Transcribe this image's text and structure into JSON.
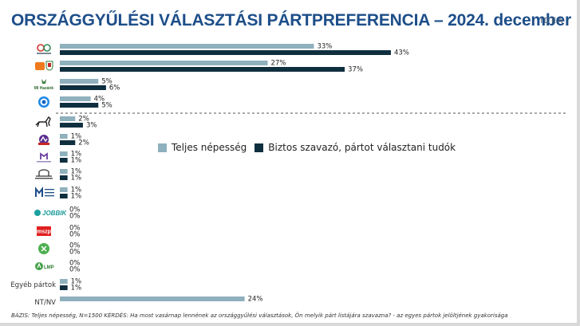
{
  "header": {
    "title": "ORSZÁGGYŰLÉSI VÁLASZTÁSI PÁRTPREFERENCIA – 2024. december",
    "brand": "IDEA"
  },
  "legend": [
    {
      "name": "Teljes népesség",
      "color": "#8fb0bd"
    },
    {
      "name": "Biztos szavazó, pártot választani tudók",
      "color": "#0f2f3f"
    }
  ],
  "footnote": "BÁZIS: Teljes népesség, N=1500  KÉRDÉS:  Ha most vasárnap lennének az országgyűlési választások, Ön melyik párt listájára szavazna? - az egyes pártok jelöltjének gyakorisága",
  "colors": {
    "teljes": "#8fb0bd",
    "biztos": "#0f2f3f",
    "divider": "#555555"
  },
  "chart_data": {
    "type": "bar",
    "orientation": "horizontal",
    "categories": [
      "TISZA PÁRT",
      "FIDESZ-KDNP",
      "MI Hazánk",
      "DK",
      "MKKP",
      "Momentum",
      "Második Reformkor",
      "Nemzeti Ellenállás Mozgalom",
      "Magyar Munkáspárt",
      "JOBBIK",
      "MSZP",
      "Párbeszéd",
      "LMP",
      "Egyéb pártok",
      "NT/NV"
    ],
    "category_text": [
      "",
      "",
      "MI Hazánk",
      "",
      "",
      "",
      "",
      "",
      "",
      "JOBBIK",
      "mszp",
      "",
      "LMP",
      "Egyéb pártok",
      "NT/NV"
    ],
    "series": [
      {
        "name": "Teljes népesség",
        "values": [
          33,
          27,
          5,
          4,
          2,
          1,
          1,
          1,
          1,
          0,
          0,
          0,
          0,
          1,
          24
        ],
        "labels": [
          "33%",
          "27%",
          "5%",
          "4%",
          "2%",
          "1%",
          "1%",
          "1%",
          "1%",
          "0%",
          "0%",
          "0%",
          "0%",
          "1%",
          "24%"
        ]
      },
      {
        "name": "Biztos szavazó, pártot választani tudók",
        "values": [
          43,
          37,
          6,
          5,
          3,
          2,
          1,
          1,
          1,
          0,
          0,
          0,
          0,
          1,
          null
        ],
        "labels": [
          "43%",
          "37%",
          "6%",
          "5%",
          "3%",
          "2%",
          "1%",
          "1%",
          "1%",
          "0%",
          "0%",
          "0%",
          "0%",
          "1%",
          ""
        ]
      }
    ],
    "icons": [
      "tisza-logo-icon",
      "fidesz-logo-icon",
      "mi-hazank-logo-icon",
      "dk-logo-icon",
      "mkkp-dog-icon",
      "momentum-logo-icon",
      "masodik-reformkor-logo-icon",
      "nemzeti-ellenallas-logo-icon",
      "munkaspart-logo-icon",
      "jobbik-logo-icon",
      "mszp-logo-icon",
      "parbeszed-logo-icon",
      "lmp-logo-icon",
      "",
      ""
    ],
    "divider_after_index": 3,
    "xlim": [
      0,
      45
    ]
  }
}
